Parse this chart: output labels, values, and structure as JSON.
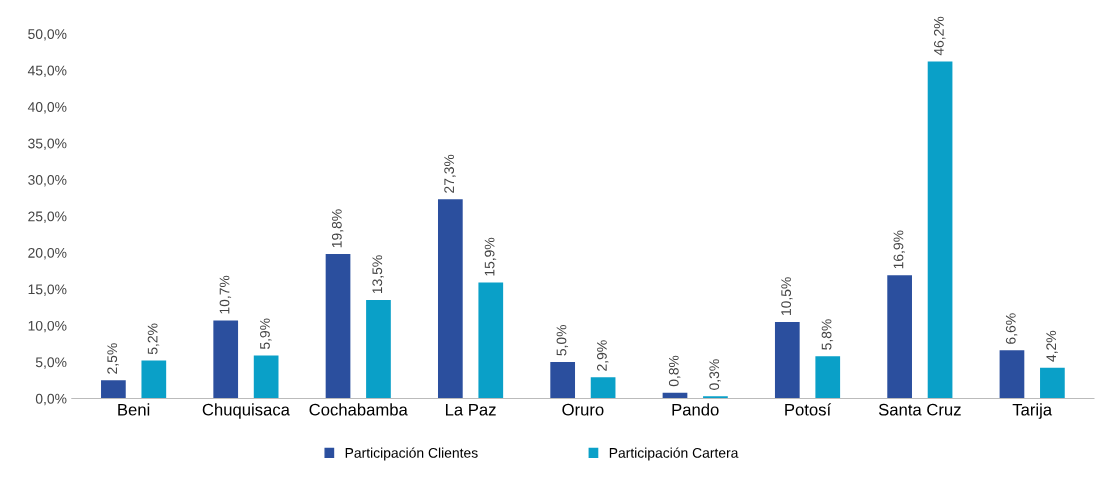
{
  "chart_data": {
    "type": "bar",
    "categories": [
      "Beni",
      "Chuquisaca",
      "Cochabamba",
      "La Paz",
      "Oruro",
      "Pando",
      "Potosí",
      "Santa Cruz",
      "Tarija"
    ],
    "series": [
      {
        "name": "Participación Clientes",
        "color": "#2b4f9e",
        "values": [
          2.5,
          10.7,
          19.8,
          27.3,
          5.0,
          0.8,
          10.5,
          16.9,
          6.6
        ],
        "value_labels": [
          "2,5%",
          "10,7%",
          "19,8%",
          "27,3%",
          "5,0%",
          "0,8%",
          "10,5%",
          "16,9%",
          "6,6%"
        ]
      },
      {
        "name": "Participación Cartera",
        "color": "#0aa0c8",
        "values": [
          5.2,
          5.9,
          13.5,
          15.9,
          2.9,
          0.3,
          5.8,
          46.2,
          4.2
        ],
        "value_labels": [
          "5,2%",
          "5,9%",
          "13,5%",
          "15,9%",
          "2,9%",
          "0,3%",
          "5,8%",
          "46,2%",
          "4,2%"
        ]
      }
    ],
    "ylim": [
      0,
      50
    ],
    "yticks": [
      {
        "value": 0,
        "label": "0,0%"
      },
      {
        "value": 5,
        "label": "5,0%"
      },
      {
        "value": 10,
        "label": "10,0%"
      },
      {
        "value": 15,
        "label": "15,0%"
      },
      {
        "value": 20,
        "label": "20,0%"
      },
      {
        "value": 25,
        "label": "25,0%"
      },
      {
        "value": 30,
        "label": "30,0%"
      },
      {
        "value": 35,
        "label": "35,0%"
      },
      {
        "value": 40,
        "label": "40,0%"
      },
      {
        "value": 45,
        "label": "45,0%"
      },
      {
        "value": 50,
        "label": "50,0%"
      }
    ],
    "grid": false,
    "legend": "bottom"
  }
}
